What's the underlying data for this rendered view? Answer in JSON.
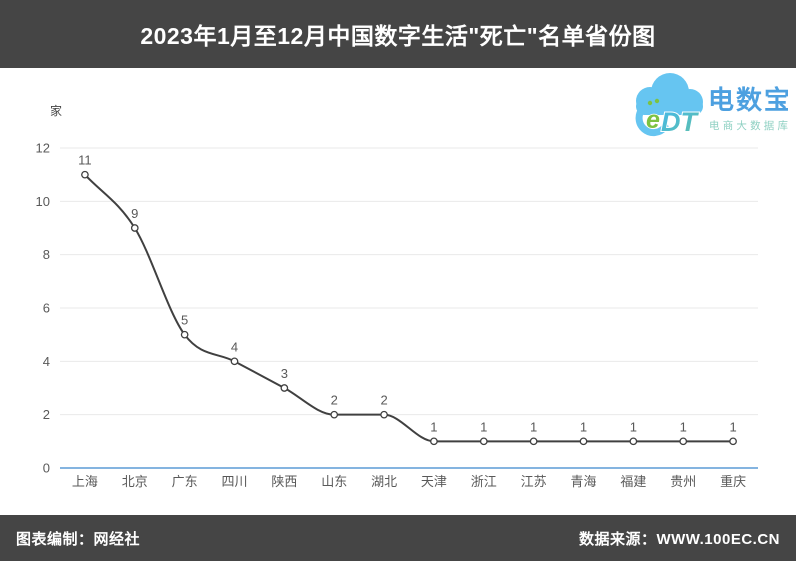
{
  "title_bar": {
    "title": "2023年1月至12月中国数字生活\"死亡\"名单省份图"
  },
  "footer": {
    "left": "图表编制：网经社",
    "right": "数据来源：WWW.100EC.CN"
  },
  "logo": {
    "monogram_e": "e",
    "monogram_dt": "DT",
    "brand": "电数宝",
    "tagline": "电商大数据库"
  },
  "colors": {
    "bar_background": "#454545",
    "logo_cloud_blue": "#66c5f1",
    "logo_green": "#7dc242",
    "logo_brand_blue": "#4da0e0",
    "logo_tagline_teal": "#8ed0c2"
  },
  "chart_data": {
    "type": "line",
    "title": "2023年1月至12月中国数字生活\"死亡\"名单省份图",
    "unit_label": "家",
    "categories": [
      "上海",
      "北京",
      "广东",
      "四川",
      "陕西",
      "山东",
      "湖北",
      "天津",
      "浙江",
      "江苏",
      "青海",
      "福建",
      "贵州",
      "重庆"
    ],
    "values": [
      11,
      9,
      5,
      4,
      3,
      2,
      2,
      1,
      1,
      1,
      1,
      1,
      1,
      1
    ],
    "ylim": [
      0,
      12
    ],
    "yticks": [
      0,
      2,
      4,
      6,
      8,
      10,
      12
    ],
    "grid": true,
    "legend": "none",
    "curve": "smooth-monotone",
    "marker": "hollow-circle",
    "line_color": "#404040",
    "grid_color": "#e9e9e9",
    "axis_line_color": "#5b9bd5",
    "label_color": "#595959"
  }
}
